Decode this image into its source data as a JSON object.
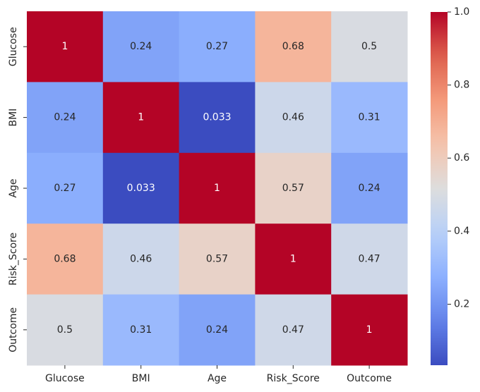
{
  "chart_data": {
    "type": "heatmap",
    "title": "",
    "xlabel": "",
    "ylabel": "",
    "x_categories": [
      "Glucose",
      "BMI",
      "Age",
      "Risk_Score",
      "Outcome"
    ],
    "y_categories": [
      "Glucose",
      "BMI",
      "Age",
      "Risk_Score",
      "Outcome"
    ],
    "values": [
      [
        1,
        0.24,
        0.27,
        0.68,
        0.5
      ],
      [
        0.24,
        1,
        0.033,
        0.46,
        0.31
      ],
      [
        0.27,
        0.033,
        1,
        0.57,
        0.24
      ],
      [
        0.68,
        0.46,
        0.57,
        1,
        0.47
      ],
      [
        0.5,
        0.31,
        0.24,
        0.47,
        1
      ]
    ],
    "colormap": "coolwarm",
    "colorbar": {
      "min": 0.033,
      "max": 1.0,
      "ticks": [
        0.2,
        0.4,
        0.6,
        0.8,
        1.0
      ],
      "tick_labels": [
        "0.2",
        "0.4",
        "0.6",
        "0.8",
        "1.0"
      ]
    },
    "annotations": true
  }
}
